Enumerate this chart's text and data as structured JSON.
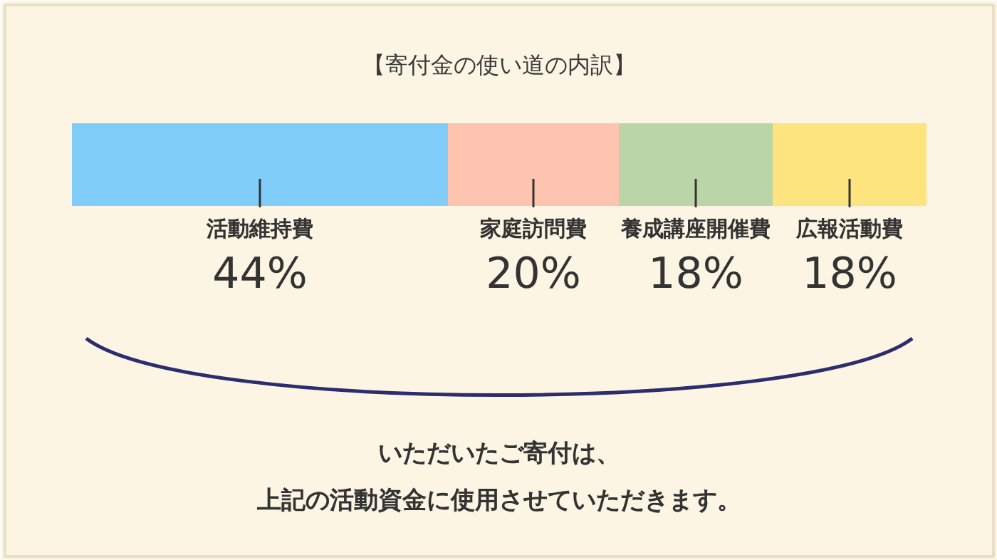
{
  "chart_data": {
    "type": "bar",
    "orientation": "horizontal",
    "stacked": true,
    "title": "【寄付金の使い道の内訳】",
    "categories": [
      null
    ],
    "series": [
      {
        "name": "活動維持費",
        "color": "#80cdfa",
        "values": [
          44
        ],
        "value_labels": [
          "44%"
        ]
      },
      {
        "name": "家庭訪問費",
        "color": "#ffc4b0",
        "values": [
          20
        ],
        "value_labels": [
          "20%"
        ]
      },
      {
        "name": "養成講座開催費",
        "color": "#bad5a8",
        "values": [
          18
        ],
        "value_labels": [
          "18%"
        ]
      },
      {
        "name": "広報活動費",
        "color": "#fde47e",
        "values": [
          18
        ],
        "value_labels": [
          "18%"
        ]
      }
    ],
    "xlim": [
      0,
      100
    ],
    "tick_labels": false,
    "grid": false,
    "annotations": [
      "いただいたご寄付は、",
      "上記の活動資金に使用させていただきます。"
    ]
  }
}
